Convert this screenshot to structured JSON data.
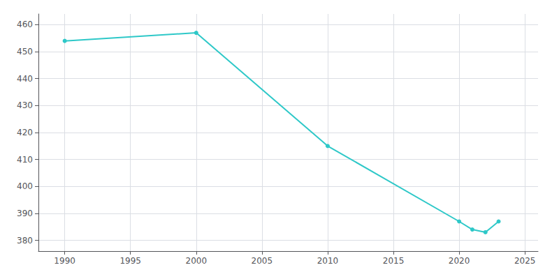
{
  "chart_data": {
    "type": "line",
    "x": [
      1990,
      2000,
      2010,
      2020,
      2021,
      2022,
      2023
    ],
    "values": [
      454,
      457,
      415,
      387,
      384,
      383,
      387
    ],
    "color": "#2ec8c8",
    "marker": "circle",
    "xlim": [
      1988,
      2026
    ],
    "ylim": [
      376,
      464
    ],
    "xticks": [
      1990,
      1995,
      2000,
      2005,
      2010,
      2015,
      2020,
      2025
    ],
    "yticks": [
      380,
      390,
      400,
      410,
      420,
      430,
      440,
      450,
      460
    ],
    "grid": true
  }
}
